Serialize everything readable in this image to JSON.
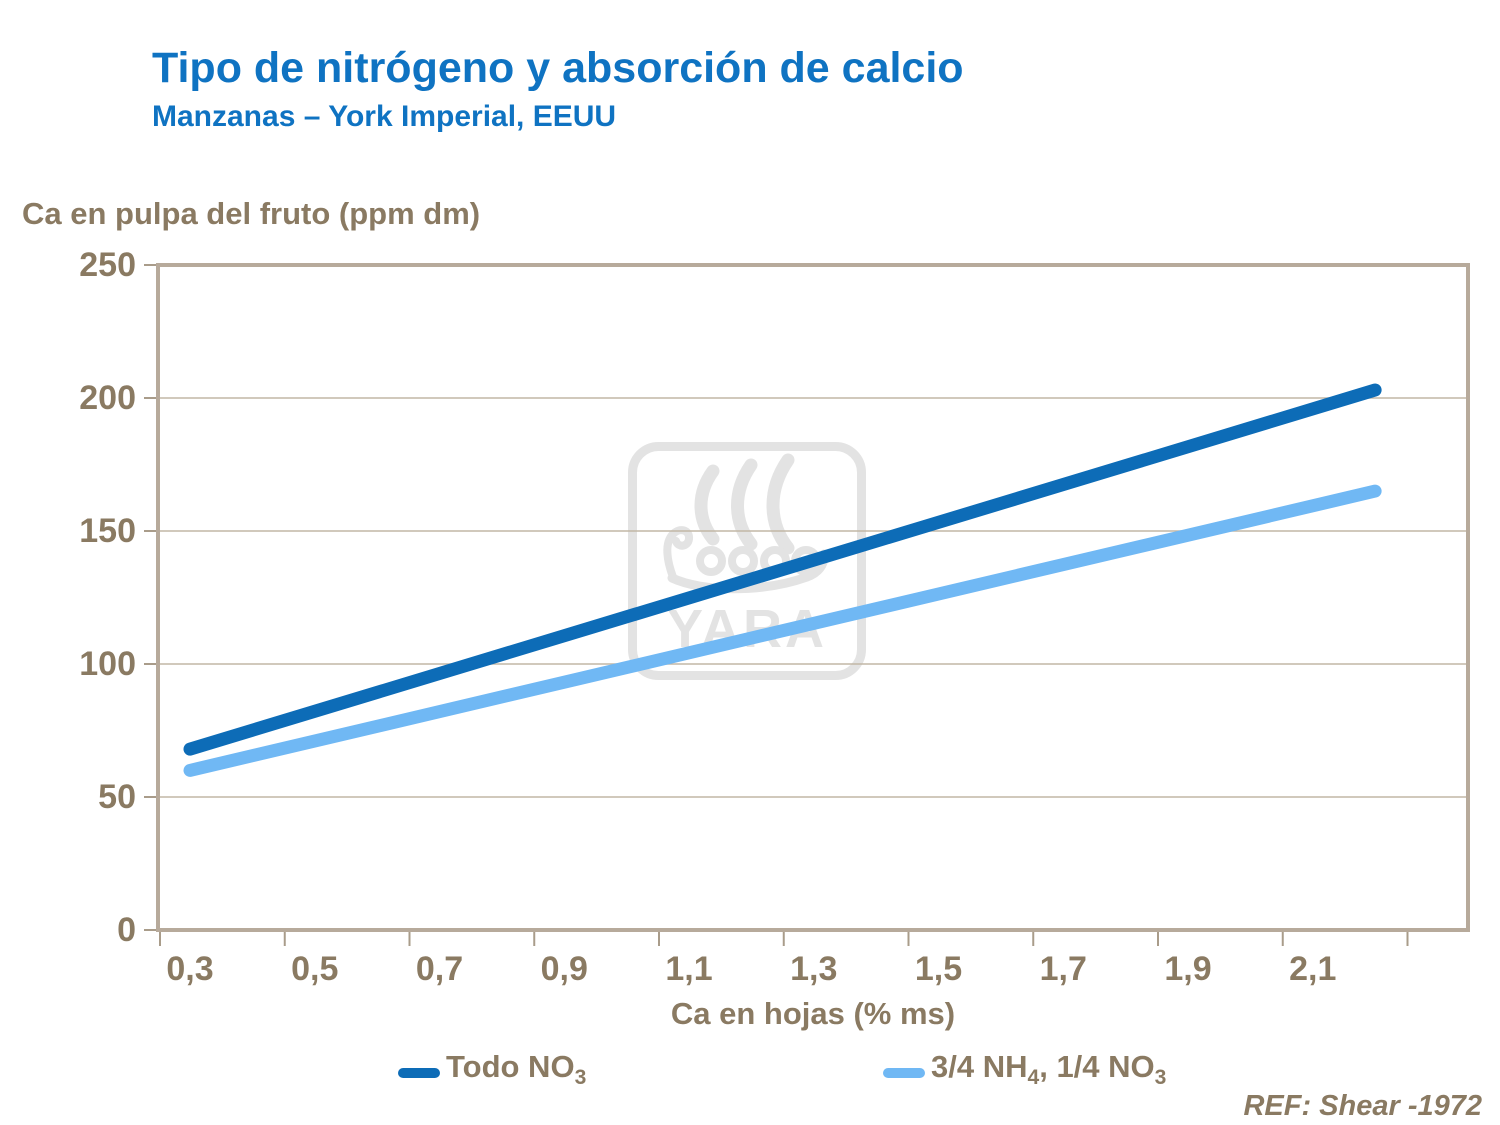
{
  "header": {
    "title": "Tipo de nitrógeno y absorción de calcio",
    "subtitle": "Manzanas – York Imperial,  EEUU"
  },
  "footer": {
    "ref": "REF: Shear -1972"
  },
  "watermark": {
    "text": "YARA"
  },
  "colors": {
    "title_blue": "#0f73c2",
    "axis_text_brown": "#8a7a62",
    "gridline": "#c2b7a6",
    "frame": "#b7aa9b",
    "tick": "#a99c8a",
    "watermark_gray": "#e3e3e3",
    "series_dark_blue": "#0d6cb7",
    "series_light_blue": "#70b8f4",
    "background": "#ffffff"
  },
  "chart_data": {
    "type": "line",
    "title": "Tipo de nitrógeno y absorción de calcio",
    "subtitle": "Manzanas – York Imperial, EEUU",
    "xlabel": "Ca en hojas (% ms)",
    "ylabel": "Ca en pulpa del fruto (ppm dm)",
    "xlim": [
      0.25,
      2.35
    ],
    "ylim": [
      0,
      250
    ],
    "grid": "horizontal",
    "legend_position": "bottom",
    "x_ticks": {
      "values": [
        0.3,
        0.5,
        0.7,
        0.9,
        1.1,
        1.3,
        1.5,
        1.7,
        1.9,
        2.1
      ],
      "labels": [
        "0,3",
        "0,5",
        "0,7",
        "0,9",
        "1,1",
        "1,3",
        "1,5",
        "1,7",
        "1,9",
        "2,1"
      ]
    },
    "y_ticks": {
      "values": [
        0,
        50,
        100,
        150,
        200,
        250
      ],
      "labels": [
        "0",
        "50",
        "100",
        "150",
        "200",
        "250"
      ]
    },
    "series": [
      {
        "name": "Todo NO3",
        "color": "#0d6cb7",
        "x": [
          0.3,
          2.2
        ],
        "y": [
          68,
          203
        ],
        "legend": {
          "p1": "Todo NO",
          "s1": "3"
        }
      },
      {
        "name": "3/4 NH4, 1/4 NO3",
        "color": "#70b8f4",
        "x": [
          0.3,
          2.2
        ],
        "y": [
          60,
          165
        ],
        "legend": {
          "p1": "3/4 NH",
          "s1": "4",
          "p2": ", 1/4 NO",
          "s2": "3"
        }
      }
    ]
  }
}
